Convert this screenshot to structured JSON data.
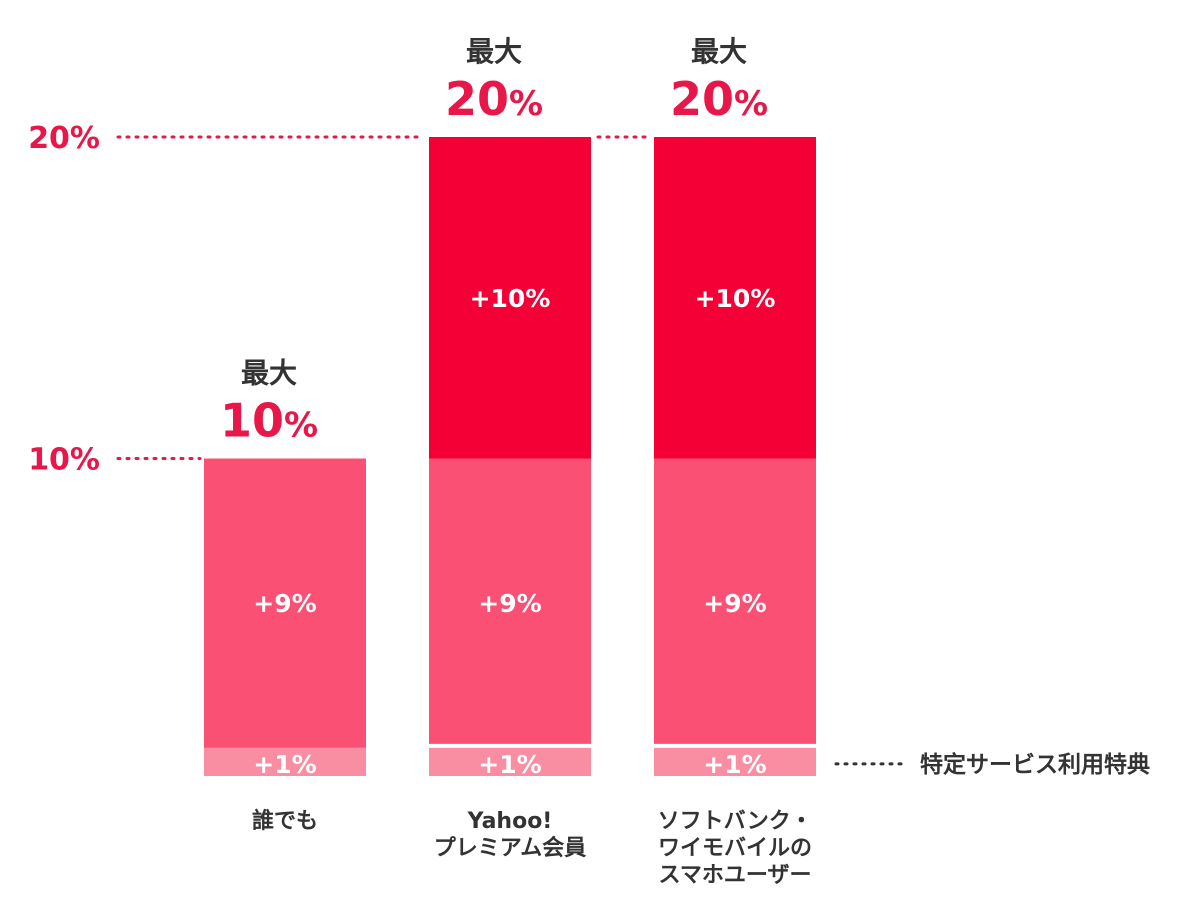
{
  "colors": {
    "accent": "#e8174a",
    "top_segment": "#f50036",
    "mid_segment": "#fa5074",
    "base_segment": "#f98ea2",
    "text": "#333333"
  },
  "chart_data": {
    "type": "bar",
    "stacked": true,
    "ylim": [
      0,
      20
    ],
    "yticks": [
      {
        "value": 20,
        "label": "20%"
      },
      {
        "value": 10,
        "label": "10%"
      }
    ],
    "categories": [
      {
        "label_lines": [
          "誰でも"
        ],
        "top_prefix": "最大",
        "top_number": "10",
        "top_unit": "%"
      },
      {
        "label_lines": [
          "Yahoo!",
          "プレミアム会員"
        ],
        "top_prefix": "最大",
        "top_number": "20",
        "top_unit": "%"
      },
      {
        "label_lines": [
          "ソフトバンク・",
          "ワイモバイルの",
          "スマホユーザー"
        ],
        "top_prefix": "最大",
        "top_number": "20",
        "top_unit": "%"
      }
    ],
    "series": [
      {
        "values": [
          1,
          1,
          1
        ],
        "labels": [
          "+1%",
          "+1%",
          "+1%"
        ],
        "color_key": "base_segment"
      },
      {
        "values": [
          9,
          9,
          9
        ],
        "labels": [
          "+9%",
          "+9%",
          "+9%"
        ],
        "color_key": "mid_segment"
      },
      {
        "values": [
          0,
          10,
          10
        ],
        "labels": [
          "",
          "+10%",
          "+10%"
        ],
        "color_key": "top_segment"
      }
    ],
    "legend": {
      "label": "特定サービス利用特典",
      "refers_to_series": 0
    }
  }
}
